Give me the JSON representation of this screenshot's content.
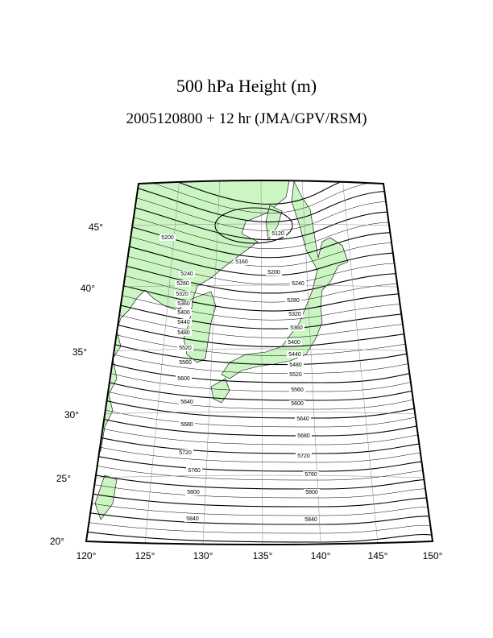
{
  "title": "500 hPa Height (m)",
  "subtitle": "2005120800 + 12 hr (JMA/GPV/RSM)",
  "lat_labels": [
    "45°",
    "40°",
    "35°",
    "30°",
    "25°",
    "20°"
  ],
  "lon_labels": [
    "120°",
    "125°",
    "130°",
    "135°",
    "140°",
    "145°",
    "150°"
  ],
  "contour_labels": [
    "5120",
    "5200",
    "5160",
    "5200",
    "5240",
    "5240",
    "5280",
    "5280",
    "5320",
    "5320",
    "5360",
    "5400",
    "5360",
    "5440",
    "5400",
    "5480",
    "5440",
    "5520",
    "5480",
    "5520",
    "5560",
    "5600",
    "5560",
    "5640",
    "5600",
    "5680",
    "5640",
    "5680",
    "5720",
    "5720",
    "5760",
    "5760",
    "5800",
    "5800",
    "5840",
    "5840"
  ]
}
